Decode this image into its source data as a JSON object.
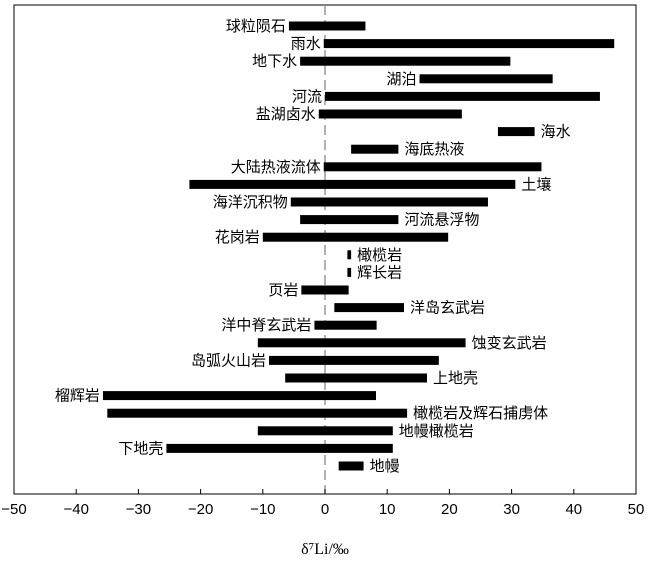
{
  "chart_data": {
    "type": "bar",
    "orientation": "horizontal",
    "xlabel": "δ⁷Li/‰",
    "xlim": [
      -50,
      50
    ],
    "xticks": [
      -50,
      -40,
      -30,
      -20,
      -10,
      0,
      10,
      20,
      30,
      40,
      50
    ],
    "reference_line": 0,
    "grid": false,
    "colors": {
      "bar": "#000000",
      "zero_line": "#999999"
    },
    "ranges": [
      {
        "label": "球粒陨石",
        "min": -5.8,
        "max": 6.5,
        "label_side": "left"
      },
      {
        "label": "雨水",
        "min": -0.2,
        "max": 46.5,
        "label_side": "left"
      },
      {
        "label": "地下水",
        "min": -4.0,
        "max": 29.8,
        "label_side": "left"
      },
      {
        "label": "湖泊",
        "min": 15.2,
        "max": 36.6,
        "label_side": "left"
      },
      {
        "label": "河流",
        "min": 0.0,
        "max": 44.2,
        "label_side": "left"
      },
      {
        "label": "盐湖卤水",
        "min": -1.0,
        "max": 22.0,
        "label_side": "left"
      },
      {
        "label": "海水",
        "min": 27.8,
        "max": 33.7,
        "label_side": "right"
      },
      {
        "label": "海底热液",
        "min": 4.2,
        "max": 11.8,
        "label_side": "right"
      },
      {
        "label": "大陆热液流体",
        "min": -0.2,
        "max": 34.8,
        "label_side": "left"
      },
      {
        "label": "土壤",
        "min": -21.8,
        "max": 30.6,
        "label_side": "right"
      },
      {
        "label": "海洋沉积物",
        "min": -5.5,
        "max": 26.2,
        "label_side": "left"
      },
      {
        "label": "河流悬浮物",
        "min": -4.0,
        "max": 11.8,
        "label_side": "right"
      },
      {
        "label": "花岗岩",
        "min": -10.0,
        "max": 19.8,
        "label_side": "left"
      },
      {
        "label": "橄榄岩",
        "min": 3.6,
        "max": 4.2,
        "label_side": "right"
      },
      {
        "label": "辉长岩",
        "min": 3.6,
        "max": 4.2,
        "label_side": "right"
      },
      {
        "label": "页岩",
        "min": -3.8,
        "max": 3.8,
        "label_side": "left"
      },
      {
        "label": "洋岛玄武岩",
        "min": 1.5,
        "max": 12.7,
        "label_side": "right"
      },
      {
        "label": "洋中脊玄武岩",
        "min": -1.7,
        "max": 8.3,
        "label_side": "left"
      },
      {
        "label": "蚀变玄武岩",
        "min": -10.8,
        "max": 22.6,
        "label_side": "right"
      },
      {
        "label": "岛弧火山岩",
        "min": -9.0,
        "max": 18.3,
        "label_side": "left"
      },
      {
        "label": "上地壳",
        "min": -6.4,
        "max": 16.4,
        "label_side": "right"
      },
      {
        "label": "榴辉岩",
        "min": -35.7,
        "max": 8.2,
        "label_side": "left"
      },
      {
        "label": "橄榄岩及辉石捕虏体",
        "min": -35.0,
        "max": 13.2,
        "label_side": "right"
      },
      {
        "label": "地幔橄榄岩",
        "min": -10.8,
        "max": 10.9,
        "label_side": "right"
      },
      {
        "label": "下地壳",
        "min": -25.5,
        "max": 10.9,
        "label_side": "left"
      },
      {
        "label": "地幔",
        "min": 2.2,
        "max": 6.2,
        "label_side": "right"
      }
    ]
  }
}
